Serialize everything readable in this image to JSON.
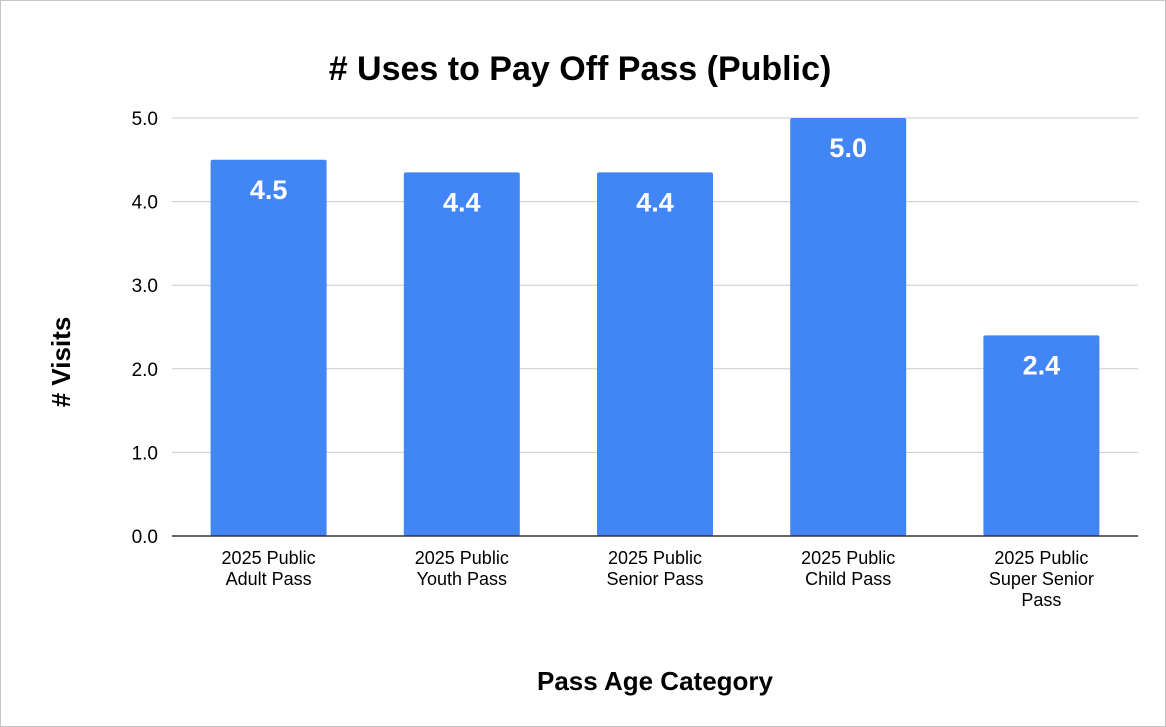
{
  "chart_data": {
    "type": "bar",
    "title": "# Uses to Pay Off Pass (Public)",
    "xlabel": "Pass Age Category",
    "ylabel": "# Visits",
    "categories": [
      [
        "2025 Public",
        "Adult Pass"
      ],
      [
        "2025 Public",
        "Youth Pass"
      ],
      [
        "2025 Public",
        "Senior Pass"
      ],
      [
        "2025 Public",
        "Child Pass"
      ],
      [
        "2025 Public",
        "Super Senior",
        "Pass"
      ]
    ],
    "values": [
      4.5,
      4.35,
      4.35,
      5.0,
      2.4
    ],
    "data_labels": [
      "4.5",
      "4.4",
      "4.4",
      "5.0",
      "2.4"
    ],
    "yticks": [
      "0.0",
      "1.0",
      "2.0",
      "3.0",
      "4.0",
      "5.0"
    ],
    "ylim": [
      0,
      5
    ],
    "grid": true,
    "legend": "none",
    "bar_color": "#4285f4",
    "gridline_color": "#cccccc",
    "axis_color": "#333333"
  }
}
